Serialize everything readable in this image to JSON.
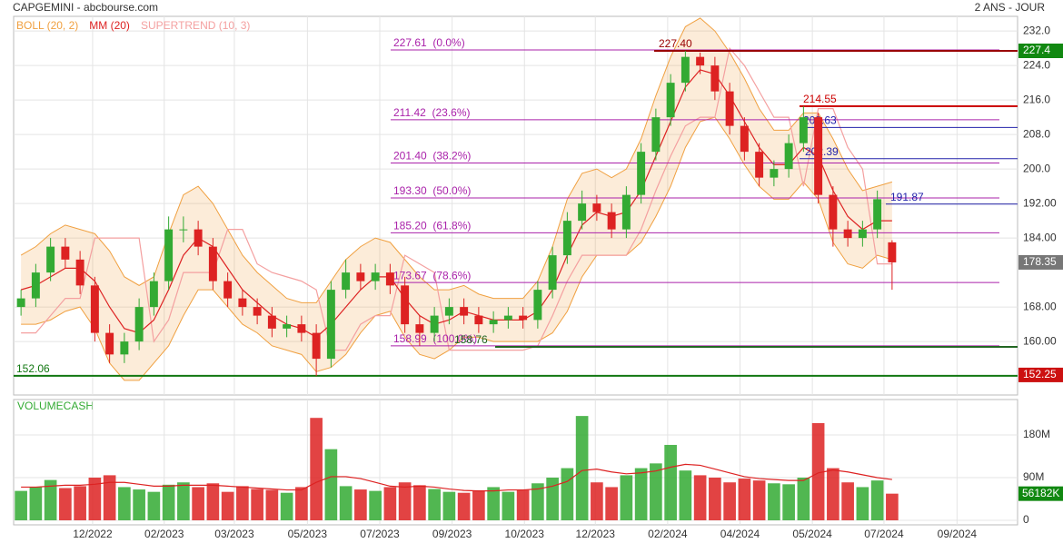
{
  "chart_data": [
    {
      "type": "candlestick",
      "title": "CAPGEMINI - abcbourse.com",
      "subtitle": "2 ANS - JOUR",
      "xlim": [
        -0.5,
        67.5
      ],
      "xticks": [
        {
          "value": 4.85,
          "label": "12/2022"
        },
        {
          "value": 9.7,
          "label": "02/2023"
        },
        {
          "value": 14.45,
          "label": "03/2023"
        },
        {
          "value": 19.4,
          "label": "05/2023"
        },
        {
          "value": 24.3,
          "label": "07/2023"
        },
        {
          "value": 29.2,
          "label": "09/2023"
        },
        {
          "value": 34.1,
          "label": "10/2023"
        },
        {
          "value": 38.9,
          "label": "12/2023"
        },
        {
          "value": 43.8,
          "label": "02/2024"
        },
        {
          "value": 48.7,
          "label": "04/2024"
        },
        {
          "value": 53.6,
          "label": "05/2024"
        },
        {
          "value": 58.45,
          "label": "07/2024"
        },
        {
          "value": 63.4,
          "label": "09/2024"
        }
      ],
      "ylim": [
        147.6,
        235.4
      ],
      "yticks": [
        {
          "value": 160,
          "label": "160.00"
        },
        {
          "value": 168,
          "label": "168.00"
        },
        {
          "value": 184,
          "label": "184.00"
        },
        {
          "value": 192,
          "label": "192.00"
        },
        {
          "value": 200,
          "label": "200.0"
        },
        {
          "value": 208,
          "label": "208.0"
        },
        {
          "value": 216,
          "label": "216.0"
        },
        {
          "value": 224,
          "label": "224.0"
        },
        {
          "value": 232,
          "label": "232.0"
        }
      ],
      "grid": true,
      "up_color": "#33aa33",
      "down_color": "#dd2222",
      "open": [
        168,
        170,
        176,
        182,
        179,
        173,
        162,
        157,
        160,
        168,
        174,
        186,
        186,
        182,
        174,
        170,
        168,
        166,
        163,
        164,
        162,
        156,
        172,
        176,
        174,
        176,
        173,
        164,
        162,
        166,
        168,
        166,
        164,
        165,
        166,
        165,
        172,
        180,
        188,
        192,
        190,
        186,
        194,
        204,
        212,
        220,
        226,
        224,
        218,
        210,
        204,
        198,
        200,
        206,
        212,
        194,
        186,
        184,
        186,
        183
      ],
      "high": [
        172,
        178,
        184,
        184,
        181,
        175,
        164,
        162,
        170,
        176,
        189,
        189,
        188,
        184,
        176,
        172,
        170,
        168,
        166,
        166,
        164,
        174,
        179,
        178,
        178,
        178,
        175,
        166,
        168,
        170,
        170,
        168,
        167,
        168,
        168,
        174,
        182,
        190,
        195,
        194,
        192,
        196,
        206,
        214,
        222,
        227.4,
        227,
        226,
        220,
        212,
        206,
        202,
        208,
        214.55,
        213,
        196,
        188,
        188,
        195,
        183.5
      ],
      "low": [
        166,
        168,
        174,
        177,
        171,
        160,
        155,
        155,
        158,
        166,
        172,
        183,
        180,
        172,
        168,
        166,
        164,
        161,
        161,
        160,
        152,
        154,
        170,
        172,
        172,
        171,
        162,
        159,
        160,
        164,
        164,
        162,
        162,
        163,
        163,
        163,
        170,
        178,
        186,
        188,
        184,
        184,
        192,
        202,
        210,
        218,
        222,
        216,
        208,
        202,
        196,
        196,
        198,
        204,
        192,
        182,
        182,
        182,
        184,
        172
      ],
      "close": [
        170,
        176,
        182,
        179,
        173,
        162,
        157,
        160,
        168,
        174,
        186,
        186,
        182,
        174,
        170,
        168,
        166,
        163,
        164,
        162,
        156,
        172,
        176,
        174,
        176,
        173,
        164,
        162,
        166,
        168,
        166,
        164,
        165,
        166,
        165,
        172,
        180,
        188,
        192,
        190,
        186,
        194,
        204,
        212,
        220,
        226,
        224,
        218,
        210,
        204,
        198,
        200,
        206,
        212,
        194,
        186,
        184,
        186,
        193,
        178.35
      ],
      "overlays": [
        {
          "name": "BOLL (20, 2)",
          "color": "#f0a040",
          "upper": [
            180,
            182,
            185,
            187,
            186,
            185,
            181,
            175,
            173,
            175,
            185,
            194,
            196,
            192,
            186,
            180,
            176,
            173,
            170,
            169,
            169,
            174,
            179,
            182,
            184,
            183,
            179,
            175,
            172,
            172,
            173,
            171,
            170,
            170,
            170,
            174,
            182,
            193,
            199,
            200,
            198,
            200,
            207,
            217,
            226,
            233,
            235,
            232,
            227,
            221,
            214,
            209,
            209,
            213,
            213,
            207,
            200,
            195,
            196,
            197
          ],
          "lower": [
            164,
            164,
            165,
            167,
            168,
            163,
            155,
            151,
            151,
            155,
            159,
            166,
            172,
            172,
            168,
            164,
            162,
            159,
            158,
            157,
            153,
            154,
            157,
            162,
            166,
            167,
            161,
            157,
            156,
            158,
            161,
            161,
            160,
            160,
            160,
            160,
            162,
            167,
            175,
            180,
            180,
            180,
            183,
            189,
            196,
            205,
            211,
            212,
            207,
            201,
            196,
            193,
            193,
            197,
            193,
            183,
            178,
            177,
            180,
            179
          ]
        },
        {
          "name": "MM (20)",
          "color": "#dd2222",
          "values": [
            172,
            173,
            175,
            177,
            177,
            174,
            168,
            163,
            162,
            165,
            172,
            180,
            184,
            182,
            177,
            172,
            169,
            166,
            164,
            163,
            161,
            164,
            168,
            172,
            175,
            175,
            170,
            166,
            164,
            165,
            167,
            166,
            165,
            165,
            165,
            167,
            172,
            180,
            187,
            190,
            189,
            190,
            195,
            203,
            211,
            219,
            223,
            222,
            217,
            211,
            205,
            201,
            201,
            205,
            203,
            195,
            189,
            186,
            188,
            188
          ]
        },
        {
          "name": "SUPERTREND (10, 3)",
          "color": "#f4a0a0",
          "values": [
            162,
            162,
            166,
            170,
            170,
            184,
            184,
            184,
            184,
            160,
            165,
            176,
            176,
            176,
            186,
            186,
            178,
            176,
            175,
            174,
            172,
            158,
            158,
            164,
            166,
            166,
            180,
            178,
            176,
            158,
            158,
            158,
            158,
            158,
            158,
            159,
            166,
            174,
            180,
            180,
            180,
            180,
            186,
            195,
            203,
            210,
            212,
            212,
            228,
            224,
            218,
            212,
            212,
            196,
            214,
            214,
            205,
            200,
            178,
            178
          ]
        }
      ],
      "fibonacci": {
        "color": "#aa22aa",
        "levels": [
          {
            "value": 227.61,
            "label": "227.61  (0.0%)"
          },
          {
            "value": 211.42,
            "label": "211.42  (23.6%)"
          },
          {
            "value": 201.4,
            "label": "201.40  (38.2%)"
          },
          {
            "value": 193.3,
            "label": "193.30  (50.0%)"
          },
          {
            "value": 185.2,
            "label": "185.20  (61.8%)"
          },
          {
            "value": 173.67,
            "label": "173.67  (78.6%)"
          },
          {
            "value": 158.99,
            "label": "158.99  (100.0%)"
          }
        ]
      },
      "levels": [
        {
          "value": 227.4,
          "label": "227.40",
          "color": "#990000"
        },
        {
          "value": 214.55,
          "label": "214.55",
          "color": "#cc0000"
        },
        {
          "value": 209.63,
          "label": "209.63",
          "color": "#2222aa"
        },
        {
          "value": 202.39,
          "label": "202.39",
          "color": "#2222aa"
        },
        {
          "value": 191.87,
          "label": "191.87",
          "color": "#2222aa"
        },
        {
          "value": 158.76,
          "label": "158.76",
          "color": "#226622"
        },
        {
          "value": 152.06,
          "label": "152.06",
          "color": "#117711"
        }
      ],
      "badges": [
        {
          "value": 227.4,
          "label": "227.4",
          "color": "#118811"
        },
        {
          "value": 178.35,
          "label": "178.35",
          "color": "#777777"
        },
        {
          "value": 152.25,
          "label": "152.25",
          "color": "#cc1111"
        }
      ]
    },
    {
      "type": "bar",
      "title": "VOLUMECASH",
      "ylim": [
        0,
        254.7
      ],
      "yticks": [
        0,
        {
          "value": 90,
          "label": "90M"
        },
        {
          "value": 180,
          "label": "180M"
        }
      ],
      "values": [
        62,
        70,
        85,
        68,
        72,
        90,
        95,
        70,
        65,
        60,
        75,
        80,
        70,
        78,
        60,
        72,
        66,
        64,
        58,
        70,
        216,
        150,
        72,
        65,
        62,
        70,
        80,
        74,
        66,
        60,
        58,
        62,
        70,
        60,
        64,
        78,
        90,
        110,
        220,
        80,
        70,
        95,
        110,
        120,
        159,
        105,
        95,
        90,
        80,
        88,
        84,
        78,
        76,
        90,
        205,
        110,
        80,
        70,
        84,
        56.182
      ],
      "ma": {
        "color": "#dd2222",
        "values": [
          70,
          70,
          72,
          74,
          74,
          76,
          80,
          80,
          76,
          72,
          72,
          74,
          74,
          74,
          72,
          70,
          68,
          66,
          64,
          64,
          80,
          92,
          92,
          88,
          80,
          72,
          70,
          72,
          70,
          66,
          63,
          62,
          62,
          64,
          64,
          66,
          72,
          82,
          105,
          108,
          102,
          98,
          100,
          104,
          112,
          118,
          116,
          108,
          100,
          92,
          88,
          86,
          84,
          84,
          100,
          106,
          102,
          96,
          90,
          86
        ]
      },
      "badge": {
        "value": 56.182,
        "label": "56182K",
        "color": "#118811"
      }
    }
  ]
}
